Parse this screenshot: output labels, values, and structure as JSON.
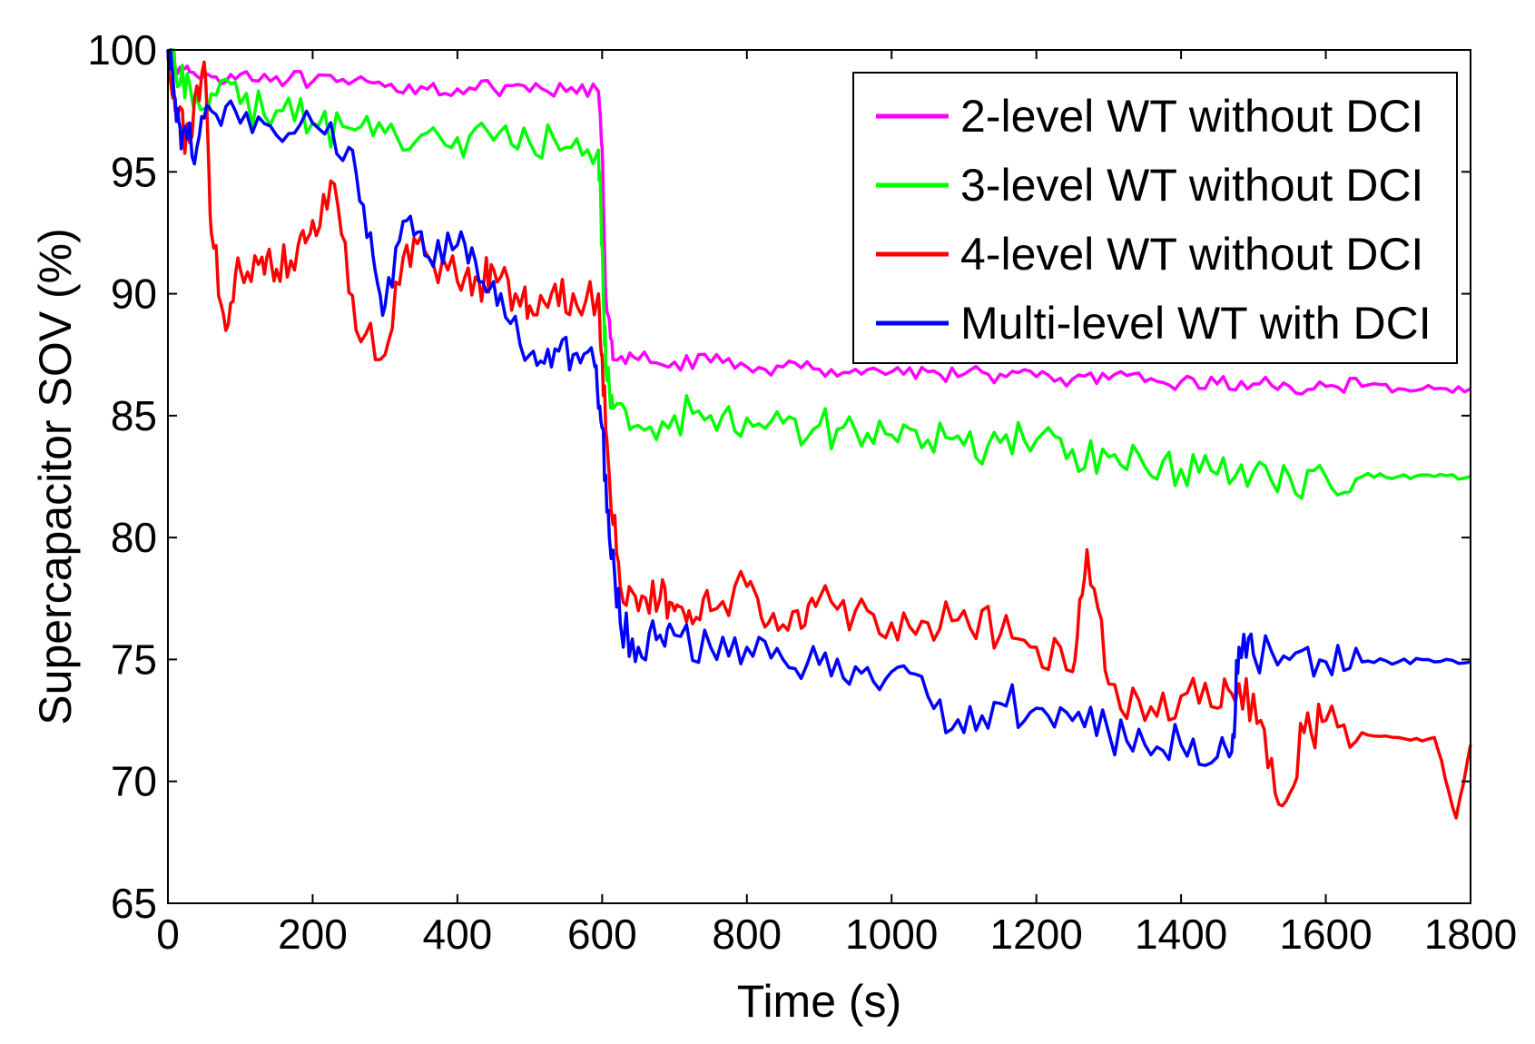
{
  "chart_data": {
    "type": "line",
    "title": "",
    "xlabel": "Time (s)",
    "ylabel": "Supercapacitor SOV (%)",
    "xlim": [
      0,
      1800
    ],
    "ylim": [
      65,
      100
    ],
    "xticks": [
      0,
      200,
      400,
      600,
      800,
      1000,
      1200,
      1400,
      1600,
      1800
    ],
    "yticks": [
      65,
      70,
      75,
      80,
      85,
      90,
      95,
      100
    ],
    "grid": false,
    "legend_position": "top-right",
    "series": [
      {
        "name": "2-level WT without DCI",
        "color": "#ff00ff",
        "x": [
          0,
          10,
          30,
          60,
          100,
          150,
          200,
          250,
          300,
          350,
          400,
          450,
          500,
          550,
          595,
          600,
          605,
          615,
          650,
          700,
          750,
          800,
          850,
          900,
          950,
          1000,
          1050,
          1100,
          1150,
          1200,
          1250,
          1300,
          1350,
          1400,
          1450,
          1500,
          1550,
          1600,
          1650,
          1700,
          1750,
          1800
        ],
        "values": [
          100,
          99.3,
          99.1,
          98.9,
          99.0,
          98.9,
          98.7,
          98.6,
          98.5,
          98.5,
          98.4,
          98.4,
          98.3,
          98.3,
          98.3,
          96.0,
          90.0,
          87.3,
          87.3,
          87.2,
          87.2,
          87.0,
          87.0,
          86.9,
          86.9,
          86.8,
          86.8,
          86.7,
          86.7,
          86.6,
          86.5,
          86.5,
          86.4,
          86.4,
          86.3,
          86.3,
          86.2,
          86.2,
          86.2,
          86.1,
          86.1,
          86.1
        ]
      },
      {
        "name": "3-level WT without DCI",
        "color": "#00ff00",
        "x": [
          0,
          10,
          30,
          60,
          100,
          150,
          200,
          250,
          300,
          350,
          400,
          450,
          500,
          550,
          595,
          600,
          605,
          615,
          650,
          700,
          750,
          800,
          850,
          900,
          950,
          1000,
          1050,
          1100,
          1150,
          1200,
          1250,
          1300,
          1350,
          1400,
          1450,
          1500,
          1550,
          1600,
          1650,
          1700,
          1750,
          1800
        ],
        "values": [
          100,
          99.2,
          98.6,
          98.2,
          97.8,
          97.5,
          97.0,
          96.8,
          96.6,
          96.5,
          96.4,
          96.3,
          96.2,
          96.0,
          95.9,
          92.0,
          87.0,
          85.3,
          84.6,
          85.0,
          85.0,
          84.9,
          84.7,
          84.6,
          84.4,
          84.2,
          84.0,
          83.8,
          83.9,
          84.0,
          83.6,
          83.3,
          82.9,
          82.8,
          82.6,
          82.7,
          82.5,
          82.5,
          82.5,
          82.5,
          82.5,
          82.5
        ]
      },
      {
        "name": "4-level WT without DCI",
        "color": "#ff0000",
        "x": [
          0,
          10,
          30,
          50,
          60,
          80,
          100,
          130,
          150,
          180,
          200,
          230,
          260,
          300,
          330,
          360,
          400,
          430,
          450,
          480,
          500,
          530,
          560,
          595,
          600,
          610,
          625,
          650,
          680,
          700,
          720,
          750,
          800,
          830,
          870,
          900,
          950,
          1000,
          1050,
          1100,
          1150,
          1200,
          1250,
          1270,
          1300,
          1350,
          1400,
          1450,
          1480,
          1510,
          1540,
          1570,
          1600,
          1650,
          1700,
          1750,
          1780,
          1800
        ],
        "values": [
          100,
          97.5,
          96.2,
          99.5,
          92.5,
          88.5,
          91.0,
          91.5,
          91.0,
          92.0,
          93.0,
          94.5,
          88.5,
          87.5,
          92.0,
          91.5,
          90.5,
          90.5,
          91.0,
          90.0,
          89.5,
          90.0,
          90.0,
          90.0,
          87.5,
          82.5,
          78.0,
          77.0,
          77.5,
          77.0,
          77.0,
          77.0,
          78.0,
          76.5,
          77.0,
          77.5,
          77.0,
          76.5,
          76.5,
          77.0,
          76.0,
          75.5,
          74.5,
          79.5,
          74.0,
          72.5,
          73.5,
          73.0,
          74.0,
          72.5,
          69.0,
          72.0,
          72.5,
          72.0,
          71.8,
          71.8,
          68.5,
          71.5
        ]
      },
      {
        "name": "Multi-level WT with DCI",
        "color": "#0000ff",
        "x": [
          0,
          10,
          20,
          40,
          60,
          100,
          150,
          200,
          250,
          280,
          300,
          330,
          360,
          400,
          430,
          460,
          500,
          530,
          560,
          590,
          600,
          610,
          625,
          650,
          680,
          700,
          750,
          800,
          850,
          900,
          950,
          1000,
          1050,
          1100,
          1150,
          1200,
          1250,
          1300,
          1350,
          1400,
          1450,
          1470,
          1480,
          1500,
          1550,
          1600,
          1650,
          1700,
          1750,
          1800
        ],
        "values": [
          100,
          98.0,
          96.5,
          96.0,
          97.5,
          97.0,
          96.5,
          97.0,
          96.0,
          92.5,
          89.5,
          93.0,
          91.5,
          92.0,
          90.5,
          90.0,
          87.5,
          87.0,
          87.5,
          87.0,
          84.5,
          80.0,
          76.5,
          75.5,
          76.0,
          76.0,
          75.5,
          75.5,
          75.0,
          74.8,
          74.7,
          74.5,
          73.5,
          72.0,
          73.2,
          73.0,
          72.5,
          72.0,
          71.5,
          71.5,
          71.0,
          71.2,
          75.5,
          75.2,
          75.0,
          74.9,
          74.9,
          74.9,
          74.9,
          74.9
        ]
      }
    ]
  }
}
